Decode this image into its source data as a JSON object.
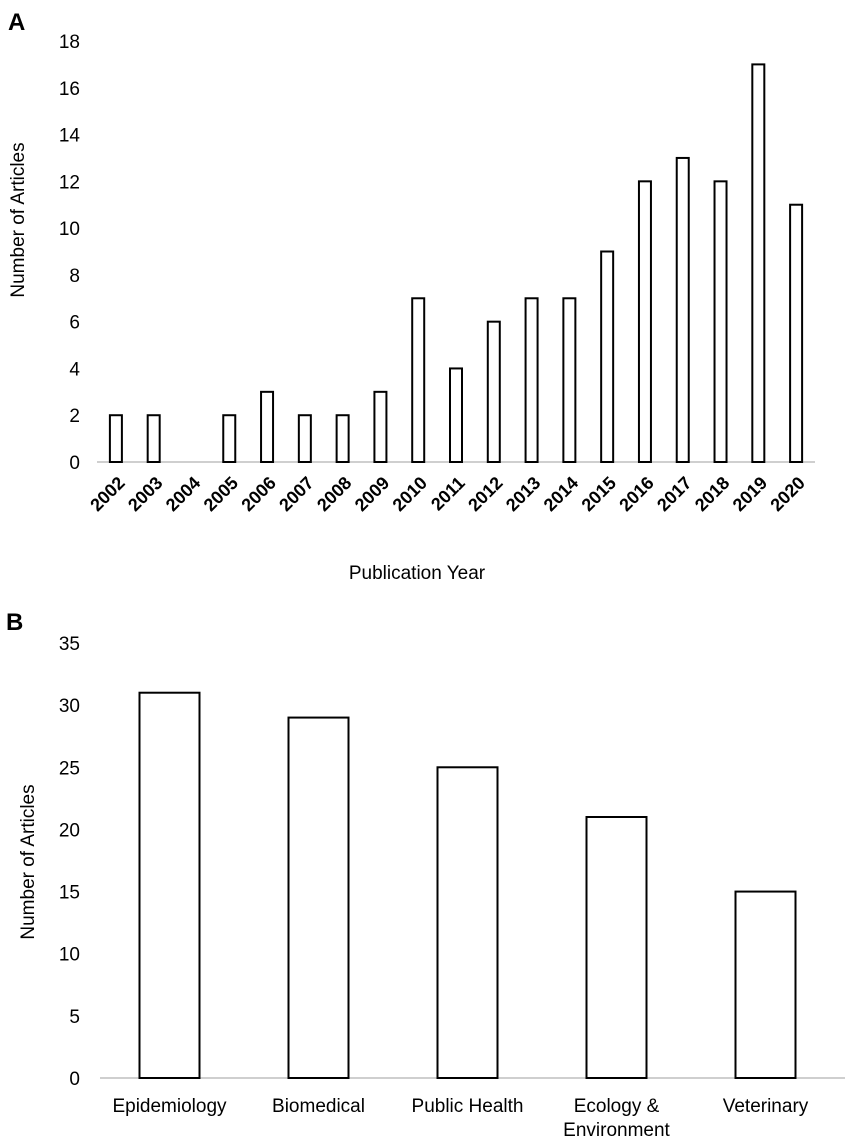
{
  "chart_data": [
    {
      "type": "bar",
      "panel": "A",
      "categories": [
        "2002",
        "2003",
        "2004",
        "2005",
        "2006",
        "2007",
        "2008",
        "2009",
        "2010",
        "2011",
        "2012",
        "2013",
        "2014",
        "2015",
        "2016",
        "2017",
        "2018",
        "2019",
        "2020"
      ],
      "values": [
        2,
        2,
        0,
        2,
        3,
        2,
        2,
        3,
        7,
        4,
        6,
        7,
        7,
        9,
        12,
        13,
        12,
        17,
        11
      ],
      "yticks": [
        "0",
        "2",
        "4",
        "6",
        "8",
        "10",
        "12",
        "14",
        "16",
        "18"
      ],
      "ylim": [
        0,
        18
      ],
      "xlabel": "Publication Year",
      "ylabel": "Number of Articles",
      "grid": false,
      "colors": {
        "bar_fill": "#ffffff",
        "bar_stroke": "#000000",
        "axis": "#bfbfbf"
      }
    },
    {
      "type": "bar",
      "panel": "B",
      "categories": [
        [
          "Epidemiology"
        ],
        [
          "Biomedical"
        ],
        [
          "Public Health"
        ],
        [
          "Ecology &",
          "Environment"
        ],
        [
          "Veterinary"
        ]
      ],
      "values": [
        31,
        29,
        25,
        21,
        15
      ],
      "yticks": [
        "0",
        "5",
        "10",
        "15",
        "20",
        "25",
        "30",
        "35"
      ],
      "ylim": [
        0,
        35
      ],
      "xlabel": "",
      "ylabel": "Number of Articles",
      "grid": false,
      "colors": {
        "bar_fill": "#ffffff",
        "bar_stroke": "#000000",
        "axis": "#bfbfbf"
      }
    }
  ]
}
